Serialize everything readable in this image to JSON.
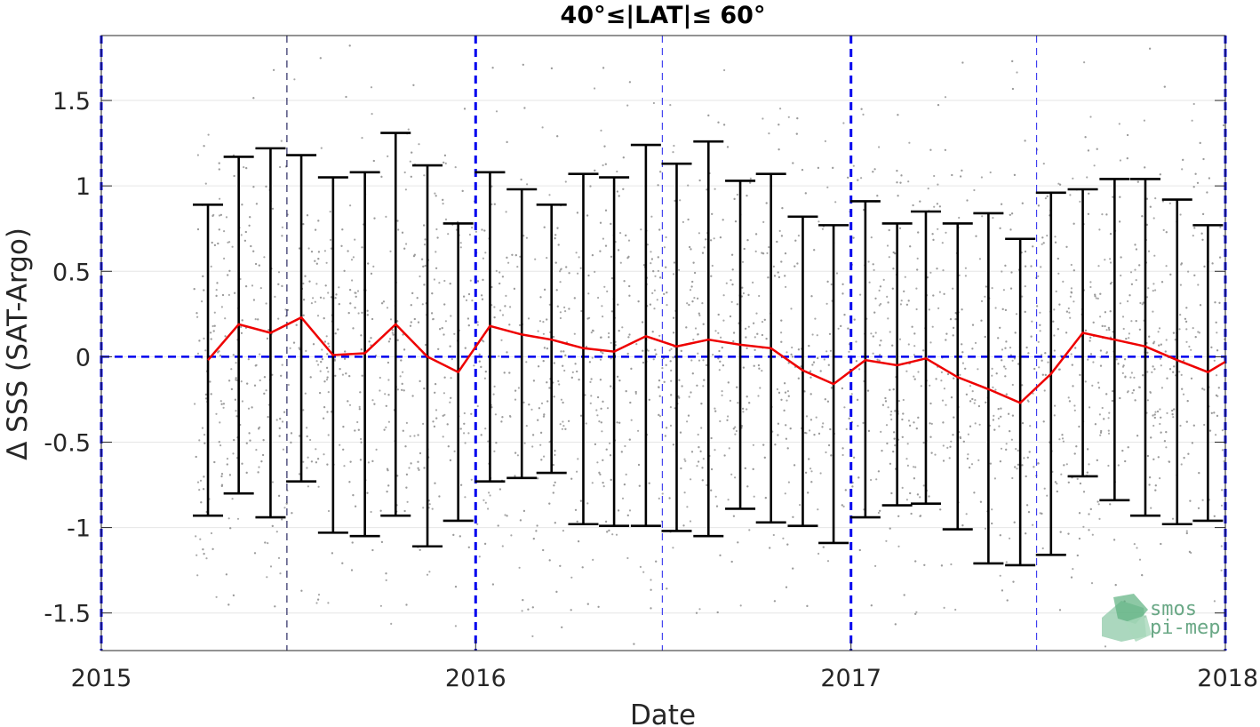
{
  "chart_data": {
    "type": "line",
    "title": "40°≤|LAT|≤ 60°",
    "xlabel": "Date",
    "ylabel": "Δ SSS (SAT-Argo)",
    "xlim": [
      "2015-01-01",
      "2018-01-01"
    ],
    "ylim": [
      -1.72,
      1.88
    ],
    "x_ticks": [
      "2015",
      "2016",
      "2017",
      "2018"
    ],
    "y_ticks": [
      "-1.5",
      "-1",
      "-0.5",
      "0",
      "0.5",
      "1",
      "1.5"
    ],
    "grid": true,
    "zero_line": {
      "y": 0,
      "style": "dashed",
      "color": "#0000ee"
    },
    "year_lines": [
      "2015-01-01",
      "2016-01-01",
      "2017-01-01",
      "2018-01-01"
    ],
    "half_year_lines": [
      "2015-07-01",
      "2016-07-01",
      "2017-07-01"
    ],
    "series": [
      {
        "color": "#ee0000",
        "x": [
          "2015-04-15",
          "2015-05-15",
          "2015-06-15",
          "2015-07-15",
          "2015-08-15",
          "2015-09-15",
          "2015-10-15",
          "2015-11-15",
          "2015-12-15",
          "2016-01-15",
          "2016-02-15",
          "2016-03-15",
          "2016-04-15",
          "2016-05-15",
          "2016-06-15",
          "2016-07-15",
          "2016-08-15",
          "2016-09-15",
          "2016-10-15",
          "2016-11-15",
          "2016-12-15",
          "2017-01-15",
          "2017-02-15",
          "2017-03-15",
          "2017-04-15",
          "2017-05-15",
          "2017-06-15",
          "2017-07-15",
          "2017-08-15",
          "2017-09-15",
          "2017-10-15",
          "2017-11-15",
          "2017-12-15",
          "2018-01-01"
        ],
        "mean": [
          -0.02,
          0.19,
          0.14,
          0.23,
          0.01,
          0.02,
          0.19,
          0.0,
          -0.09,
          0.18,
          0.13,
          0.1,
          0.05,
          0.03,
          0.12,
          0.06,
          0.1,
          0.07,
          0.05,
          -0.08,
          -0.16,
          -0.02,
          -0.05,
          -0.01,
          -0.12,
          -0.19,
          -0.27,
          -0.1,
          0.14,
          0.1,
          0.06,
          -0.02,
          -0.09,
          -0.03
        ],
        "upper": [
          0.89,
          1.17,
          1.22,
          1.18,
          1.05,
          1.08,
          1.31,
          1.12,
          0.78,
          1.08,
          0.98,
          0.89,
          1.07,
          1.05,
          1.24,
          1.13,
          1.26,
          1.03,
          1.07,
          0.82,
          0.77,
          0.91,
          0.78,
          0.85,
          0.78,
          0.84,
          0.69,
          0.96,
          0.98,
          1.04,
          1.04,
          0.92,
          0.77,
          null
        ],
        "lower": [
          -0.93,
          -0.8,
          -0.94,
          -0.73,
          -1.03,
          -1.05,
          -0.93,
          -1.11,
          -0.96,
          -0.73,
          -0.71,
          -0.68,
          -0.98,
          -0.99,
          -0.99,
          -1.02,
          -1.05,
          -0.89,
          -0.97,
          -0.99,
          -1.09,
          -0.94,
          -0.87,
          -0.86,
          -1.01,
          -1.21,
          -1.22,
          -1.16,
          -0.7,
          -0.84,
          -0.93,
          -0.98,
          -0.96,
          null
        ]
      }
    ],
    "scatter": {
      "color": "#999999",
      "description_count": 4000
    },
    "logo": {
      "line1": "smos",
      "line2": "pi-mep"
    }
  }
}
